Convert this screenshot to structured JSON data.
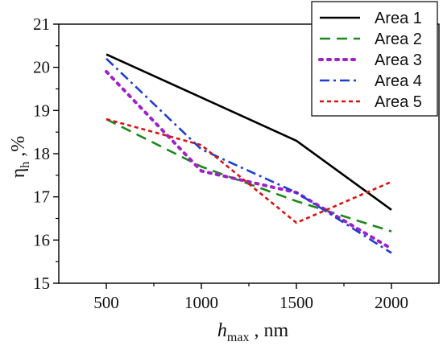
{
  "chart_data": {
    "type": "line",
    "x": [
      500,
      1000,
      1500,
      2000
    ],
    "xlabel": {
      "italic_part": "h",
      "subscript": "max",
      "suffix": " , nm"
    },
    "ylabel": {
      "symbol": "η",
      "subscript": "h",
      "suffix": " ,%"
    },
    "xlim": [
      250,
      2250
    ],
    "ylim": [
      15,
      21
    ],
    "xticks": [
      500,
      1000,
      1500,
      2000
    ],
    "yticks": [
      15,
      16,
      17,
      18,
      19,
      20,
      21
    ],
    "legend_position": "top-right",
    "grid": false,
    "series": [
      {
        "name": "Area 1",
        "color": "#000000",
        "dash": "solid",
        "values": [
          20.3,
          19.3,
          18.3,
          16.7
        ]
      },
      {
        "name": "Area 2",
        "color": "#1a8a1a",
        "dash": "dash",
        "values": [
          18.8,
          17.7,
          16.9,
          16.2
        ]
      },
      {
        "name": "Area 3",
        "color": "#a020c8",
        "dash": "dot",
        "values": [
          19.9,
          17.6,
          17.1,
          15.8
        ]
      },
      {
        "name": "Area 4",
        "color": "#1f3fd0",
        "dash": "dashdot",
        "values": [
          20.2,
          18.1,
          17.1,
          15.7
        ]
      },
      {
        "name": "Area 5",
        "color": "#e01010",
        "dash": "shortdash",
        "values": [
          18.8,
          18.2,
          16.4,
          17.35
        ]
      }
    ]
  }
}
